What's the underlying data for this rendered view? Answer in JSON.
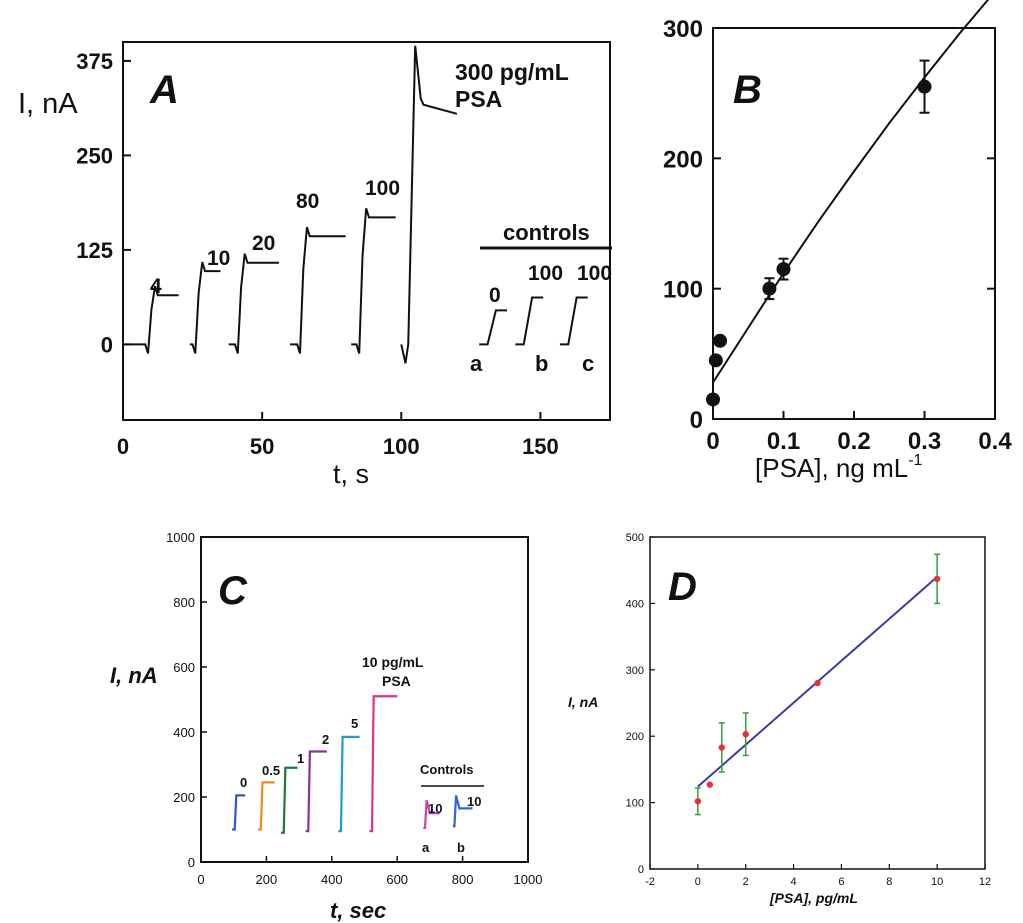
{
  "panels": {
    "A": {
      "letter": "A",
      "ylabel": "I, nA",
      "xlabel": "t, s",
      "header_line1": "300 pg/mL",
      "header_line2": "PSA",
      "controls_label": "controls",
      "step_labels": [
        "4",
        "10",
        "20",
        "80",
        "100"
      ],
      "control_values": [
        "0",
        "100",
        "100"
      ],
      "control_letters": [
        "a",
        "b",
        "c"
      ]
    },
    "B": {
      "letter": "B",
      "xlabel_main": "[PSA], ng mL",
      "xlabel_sup": "-1"
    },
    "C": {
      "letter": "C",
      "ylabel": "I, nA",
      "xlabel": "t, sec",
      "header_line1": "10 pg/mL",
      "header_line2": "PSA",
      "controls_label": "Controls",
      "step_labels": [
        "0",
        "0.5",
        "1",
        "2",
        "5"
      ],
      "control_values": [
        "10",
        "10"
      ],
      "control_letters": [
        "a",
        "b"
      ]
    },
    "D": {
      "letter": "D",
      "ylabel": "I, nA",
      "xlabel": "[PSA], pg/mL"
    }
  },
  "chart_data": [
    {
      "panel": "A",
      "type": "line",
      "xlabel": "t, s",
      "ylabel": "I, nA",
      "xlim": [
        0,
        175
      ],
      "ylim": [
        -100,
        400
      ],
      "xticks": [
        0,
        50,
        100,
        150
      ],
      "yticks": [
        0,
        125,
        250,
        375
      ],
      "series": [
        {
          "label": "4",
          "t_range": [
            0,
            20
          ],
          "baseline": 0,
          "plateau": 65
        },
        {
          "label": "10",
          "t_range": [
            24,
            35
          ],
          "baseline": 0,
          "plateau": 97
        },
        {
          "label": "20",
          "t_range": [
            38,
            56
          ],
          "baseline": 0,
          "plateau": 108
        },
        {
          "label": "80",
          "t_range": [
            60,
            80
          ],
          "baseline": 0,
          "plateau": 143
        },
        {
          "label": "100",
          "t_range": [
            82,
            98
          ],
          "baseline": 0,
          "plateau": 168
        },
        {
          "label": "300 pg/mL PSA",
          "t_range": [
            100,
            120
          ],
          "baseline": 0,
          "peak": 395,
          "plateau": 305
        }
      ],
      "controls": [
        {
          "label": "0",
          "letter": "a",
          "baseline": 0,
          "plateau": 45
        },
        {
          "label": "100",
          "letter": "b",
          "baseline": 0,
          "plateau": 62
        },
        {
          "label": "100",
          "letter": "c",
          "baseline": 0,
          "plateau": 62
        }
      ]
    },
    {
      "panel": "B",
      "type": "scatter",
      "xlabel": "[PSA], ng mL-1",
      "ylabel": "",
      "xlim": [
        0,
        0.4
      ],
      "ylim": [
        0,
        300
      ],
      "xticks": [
        0,
        0.1,
        0.2,
        0.3,
        0.4
      ],
      "yticks": [
        0,
        100,
        200,
        300
      ],
      "points": [
        {
          "x": 0.0,
          "y": 15,
          "err": 0
        },
        {
          "x": 0.004,
          "y": 45,
          "err": 0
        },
        {
          "x": 0.01,
          "y": 60,
          "err": 0
        },
        {
          "x": 0.08,
          "y": 100,
          "err": 8
        },
        {
          "x": 0.1,
          "y": 115,
          "err": 8
        },
        {
          "x": 0.3,
          "y": 255,
          "err": 20
        }
      ],
      "fit_curve": {
        "x": [
          0,
          0.05,
          0.1,
          0.15,
          0.2,
          0.25,
          0.3,
          0.35,
          0.4
        ],
        "y": [
          28,
          70,
          112,
          152,
          190,
          227,
          262,
          296,
          328
        ]
      }
    },
    {
      "panel": "C",
      "type": "line",
      "xlabel": "t, sec",
      "ylabel": "I, nA",
      "xlim": [
        0,
        1000
      ],
      "ylim": [
        0,
        1000
      ],
      "xticks": [
        0,
        200,
        400,
        600,
        800,
        1000
      ],
      "yticks": [
        0,
        200,
        400,
        600,
        800,
        1000
      ],
      "series": [
        {
          "label": "0",
          "color": "#3355cc",
          "t_range": [
            95,
            135
          ],
          "baseline": 100,
          "plateau": 205
        },
        {
          "label": "0.5",
          "color": "#ee8822",
          "t_range": [
            175,
            225
          ],
          "baseline": 100,
          "plateau": 245
        },
        {
          "label": "1",
          "color": "#1a7a3a",
          "t_range": [
            245,
            295
          ],
          "baseline": 90,
          "plateau": 290
        },
        {
          "label": "2",
          "color": "#883399",
          "t_range": [
            320,
            385
          ],
          "baseline": 95,
          "plateau": 340
        },
        {
          "label": "5",
          "color": "#2299dd",
          "t_range": [
            420,
            485
          ],
          "baseline": 95,
          "plateau": 385
        },
        {
          "label": "10 pg/mL PSA",
          "color": "#dd3388",
          "t_range": [
            515,
            600
          ],
          "baseline": 95,
          "plateau": 510
        }
      ],
      "controls": [
        {
          "label": "10",
          "letter": "a",
          "color": "#cc44aa",
          "baseline": 105,
          "plateau": 150
        },
        {
          "label": "10",
          "letter": "b",
          "color": "#3366cc",
          "baseline": 110,
          "plateau": 165
        }
      ]
    },
    {
      "panel": "D",
      "type": "scatter",
      "xlabel": "[PSA], pg/mL",
      "ylabel": "I, nA",
      "xlim": [
        -2,
        12
      ],
      "ylim": [
        0,
        500
      ],
      "xticks": [
        -2,
        0,
        2,
        4,
        6,
        8,
        10,
        12
      ],
      "yticks": [
        0,
        100,
        200,
        300,
        400,
        500
      ],
      "points": [
        {
          "x": 0,
          "y": 102,
          "err": 20
        },
        {
          "x": 0.5,
          "y": 127,
          "err": 0
        },
        {
          "x": 1,
          "y": 183,
          "err": 37
        },
        {
          "x": 2,
          "y": 203,
          "err": 32
        },
        {
          "x": 5,
          "y": 280,
          "err": 0
        },
        {
          "x": 10,
          "y": 437,
          "err": 37
        }
      ],
      "fit_line": {
        "x": [
          0,
          10
        ],
        "y": [
          124,
          440
        ]
      },
      "colors": {
        "points": "#e8303a",
        "errorbars": "#2f9e44",
        "fit": "#3a3aa8"
      }
    }
  ]
}
